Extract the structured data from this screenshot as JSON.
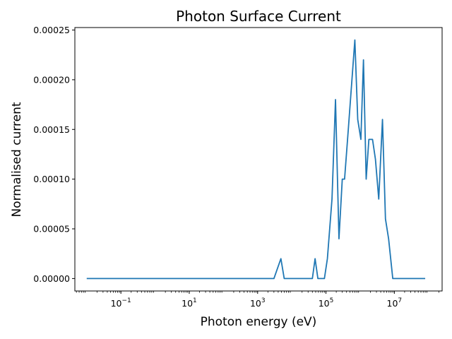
{
  "chart_data": {
    "type": "line",
    "title": "Photon Surface Current",
    "xlabel": "Photon energy (eV)",
    "ylabel": "Normalised current",
    "xscale": "log",
    "xlim": [
      0.0045,
      250000000
    ],
    "ylim": [
      -1.25e-05,
      0.0002525
    ],
    "x_ticks": [
      {
        "base": "10",
        "exp": "−1",
        "value": 0.1
      },
      {
        "base": "10",
        "exp": "1",
        "value": 10
      },
      {
        "base": "10",
        "exp": "3",
        "value": 1000
      },
      {
        "base": "10",
        "exp": "5",
        "value": 100000
      },
      {
        "base": "10",
        "exp": "7",
        "value": 10000000
      }
    ],
    "y_ticks": [
      {
        "label": "0.00000",
        "value": 0
      },
      {
        "label": "0.00005",
        "value": 5e-05
      },
      {
        "label": "0.00010",
        "value": 0.0001
      },
      {
        "label": "0.00015",
        "value": 0.00015
      },
      {
        "label": "0.00020",
        "value": 0.0002
      },
      {
        "label": "0.00025",
        "value": 0.00025
      }
    ],
    "grid": false,
    "series": [
      {
        "name": "",
        "color": "#1f77b4",
        "x": [
          0.01,
          3000,
          4800,
          6000,
          40000,
          48000,
          58000,
          90000,
          110000,
          150000,
          190000,
          240000,
          300000,
          350000,
          450000,
          700000,
          850000,
          1050000,
          1250000,
          1500000,
          1800000,
          2300000,
          2800000,
          3500000,
          4500000,
          5500000,
          6800000,
          9000000,
          15000000,
          80000000
        ],
        "y": [
          0,
          0,
          2e-05,
          0,
          0,
          2e-05,
          0,
          0,
          2e-05,
          8e-05,
          0.00018,
          4e-05,
          0.0001,
          0.0001,
          0.00015,
          0.00024,
          0.00016,
          0.00014,
          0.00022,
          0.0001,
          0.00014,
          0.00014,
          0.00012,
          8e-05,
          0.00016,
          6e-05,
          4e-05,
          0,
          0,
          0
        ]
      }
    ]
  }
}
